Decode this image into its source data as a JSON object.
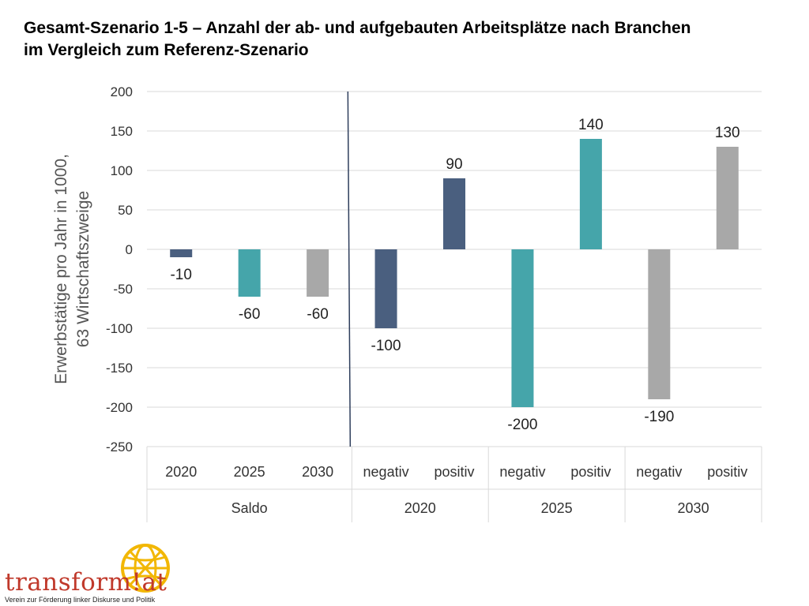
{
  "title_line1": "Gesamt-Szenario 1-5 – Anzahl der ab- und aufgebauten Arbeitsplätze nach Branchen",
  "title_line2": "im Vergleich zum Referenz-Szenario",
  "chart_data": {
    "type": "bar",
    "title": "Gesamt-Szenario 1-5 – Anzahl der ab- und aufgebauten Arbeitsplätze nach Branchen im Vergleich zum Referenz-Szenario",
    "ylabel_line1": "Erwerbstätige pro Jahr in 1000,",
    "ylabel_line2": "63 Wirtschaftszweige",
    "ylim": [
      -250,
      200
    ],
    "yticks": [
      200,
      150,
      100,
      50,
      0,
      -50,
      -100,
      -150,
      -200,
      -250
    ],
    "grid": true,
    "groups": [
      {
        "label": "Saldo",
        "categories": [
          "2020",
          "2025",
          "2030"
        ]
      },
      {
        "label": "2020",
        "categories": [
          "negativ",
          "positiv"
        ]
      },
      {
        "label": "2025",
        "categories": [
          "negativ",
          "positiv"
        ]
      },
      {
        "label": "2030",
        "categories": [
          "negativ",
          "positiv"
        ]
      }
    ],
    "bars": [
      {
        "group": "Saldo",
        "category": "2020",
        "value": -10,
        "label": "-10",
        "color": "#4a5f7f"
      },
      {
        "group": "Saldo",
        "category": "2025",
        "value": -60,
        "label": "-60",
        "color": "#45a5aa"
      },
      {
        "group": "Saldo",
        "category": "2030",
        "value": -60,
        "label": "-60",
        "color": "#a8a8a8"
      },
      {
        "group": "2020",
        "category": "negativ",
        "value": -100,
        "label": "-100",
        "color": "#4a5f7f"
      },
      {
        "group": "2020",
        "category": "positiv",
        "value": 90,
        "label": "90",
        "color": "#4a5f7f"
      },
      {
        "group": "2025",
        "category": "negativ",
        "value": -200,
        "label": "-200",
        "color": "#45a5aa"
      },
      {
        "group": "2025",
        "category": "positiv",
        "value": 140,
        "label": "140",
        "color": "#45a5aa"
      },
      {
        "group": "2030",
        "category": "negativ",
        "value": -190,
        "label": "-190",
        "color": "#a8a8a8"
      },
      {
        "group": "2030",
        "category": "positiv",
        "value": 130,
        "label": "130",
        "color": "#a8a8a8"
      }
    ]
  },
  "logo": {
    "name": "transform!at",
    "tagline": "Verein zur Förderung linker Diskurse und Politik",
    "colors": {
      "text": "#c0392b",
      "globe": "#f2b705"
    }
  }
}
